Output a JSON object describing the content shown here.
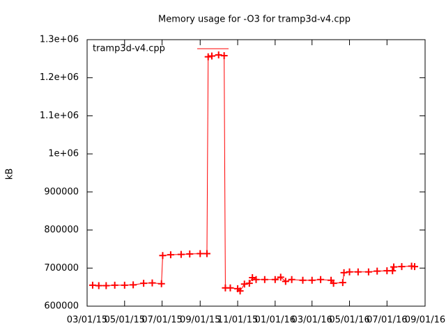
{
  "chart_data": {
    "type": "line",
    "title": "Memory usage for -O3 for tramp3d-v4.cpp",
    "ylabel": "kB",
    "legend": "top left",
    "x": [
      "03/10/15",
      "03/20/15",
      "04/01/15",
      "04/15/15",
      "05/01/15",
      "05/15/15",
      "06/01/15",
      "06/15/15",
      "06/30/15",
      "07/02/15",
      "07/15/15",
      "08/01/15",
      "08/15/15",
      "09/01/15",
      "09/12/15",
      "09/14/15",
      "09/20/15",
      "10/01/15",
      "10/10/15",
      "10/12/15",
      "10/20/15",
      "11/01/15",
      "11/05/15",
      "11/12/15",
      "11/20/15",
      "11/25/15",
      "12/01/15",
      "12/15/15",
      "01/01/16",
      "01/10/16",
      "01/18/16",
      "01/28/16",
      "02/15/16",
      "03/01/16",
      "03/15/16",
      "04/01/16",
      "04/05/16",
      "04/20/16",
      "04/22/16",
      "05/01/16",
      "05/15/16",
      "06/01/16",
      "06/15/16",
      "07/01/16",
      "07/10/16",
      "07/12/16",
      "07/25/16",
      "08/10/16",
      "08/15/16"
    ],
    "series": [
      {
        "name": "tramp3d-v4.cpp",
        "color": "#ff0000",
        "values": [
          655000,
          654000,
          654000,
          655000,
          655000,
          656000,
          660000,
          661000,
          659000,
          733000,
          735000,
          736000,
          737000,
          738000,
          738000,
          1255000,
          1257000,
          1260000,
          1258000,
          648000,
          648000,
          646000,
          640000,
          658000,
          660000,
          675000,
          670000,
          670000,
          670000,
          676000,
          665000,
          670000,
          668000,
          668000,
          670000,
          668000,
          660000,
          662000,
          688000,
          690000,
          690000,
          690000,
          692000,
          693000,
          693000,
          703000,
          704000,
          705000,
          704000
        ]
      }
    ],
    "xlim": [
      "03/01/15",
      "09/01/16"
    ],
    "xticks": [
      "03/01/15",
      "05/01/15",
      "07/01/15",
      "09/01/15",
      "11/01/15",
      "01/01/16",
      "03/01/16",
      "05/01/16",
      "07/01/16",
      "09/01/16"
    ],
    "ylim": [
      600000,
      1300000
    ],
    "yticks": [
      600000,
      700000,
      800000,
      900000,
      {
        "value": 1000000,
        "label": "1e+06"
      },
      {
        "value": 1100000,
        "label": "1.1e+06"
      },
      {
        "value": 1200000,
        "label": "1.2e+06"
      },
      {
        "value": 1300000,
        "label": "1.3e+06"
      }
    ]
  }
}
